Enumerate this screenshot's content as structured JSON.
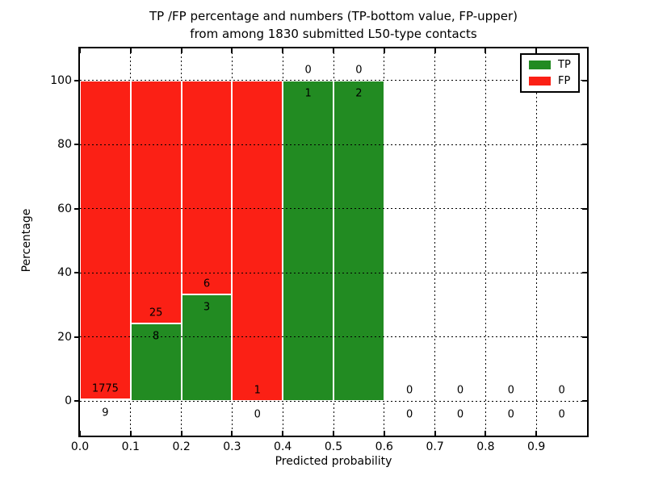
{
  "chart_data": {
    "type": "bar",
    "stacking": "percentage",
    "title_line1": "TP /FP percentage and numbers (TP-bottom value, FP-upper)",
    "title_line2": "from among 1830 submitted L50-type contacts",
    "xlabel": "Predicted probability",
    "ylabel": "Percentage",
    "xlim": [
      0.0,
      1.0
    ],
    "ylim": [
      -10.8,
      110.0
    ],
    "xticks": [
      "0.0",
      "0.1",
      "0.2",
      "0.3",
      "0.4",
      "0.5",
      "0.6",
      "0.7",
      "0.8",
      "0.9"
    ],
    "yticks": [
      "0",
      "20",
      "40",
      "60",
      "80",
      "100"
    ],
    "grid": "dotted-black",
    "colors": {
      "tp": "#228b22",
      "fp": "#fb2015"
    },
    "legend": {
      "position": "upper-right",
      "items": [
        {
          "label": "TP",
          "color_key": "tp"
        },
        {
          "label": "FP",
          "color_key": "fp"
        }
      ]
    },
    "bins": [
      {
        "x0": 0.0,
        "x1": 0.1,
        "tp": 9,
        "fp": 1775
      },
      {
        "x0": 0.1,
        "x1": 0.2,
        "tp": 8,
        "fp": 25
      },
      {
        "x0": 0.2,
        "x1": 0.3,
        "tp": 3,
        "fp": 6
      },
      {
        "x0": 0.3,
        "x1": 0.4,
        "tp": 0,
        "fp": 1
      },
      {
        "x0": 0.4,
        "x1": 0.5,
        "tp": 1,
        "fp": 0
      },
      {
        "x0": 0.5,
        "x1": 0.6,
        "tp": 2,
        "fp": 0
      },
      {
        "x0": 0.6,
        "x1": 0.7,
        "tp": 0,
        "fp": 0
      },
      {
        "x0": 0.7,
        "x1": 0.8,
        "tp": 0,
        "fp": 0
      },
      {
        "x0": 0.8,
        "x1": 0.9,
        "tp": 0,
        "fp": 0
      },
      {
        "x0": 0.9,
        "x1": 1.0,
        "tp": 0,
        "fp": 0
      }
    ]
  }
}
